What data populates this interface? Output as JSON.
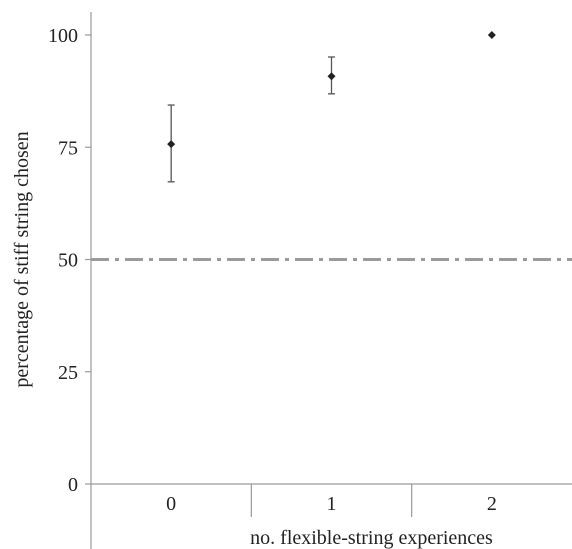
{
  "chart_data": {
    "type": "scatter",
    "title": "",
    "xlabel": "no. flexible-string experiences",
    "ylabel": "percentage of stiff string chosen",
    "categories": [
      "0",
      "1",
      "2"
    ],
    "y_ticks": [
      "0",
      "25",
      "50",
      "75",
      "100"
    ],
    "ylim": [
      0,
      105
    ],
    "points": [
      {
        "category": "0",
        "value": 75.7,
        "error_low": 67.3,
        "error_high": 84.4
      },
      {
        "category": "1",
        "value": 90.8,
        "error_low": 86.9,
        "error_high": 95.1
      },
      {
        "category": "2",
        "value": 100,
        "error_low": null,
        "error_high": null
      }
    ],
    "reference_line": {
      "value": 50,
      "style": "dash-dot",
      "color": "#9a9a9a"
    },
    "marker_color": "#222222",
    "grid": false,
    "legend": "none"
  }
}
